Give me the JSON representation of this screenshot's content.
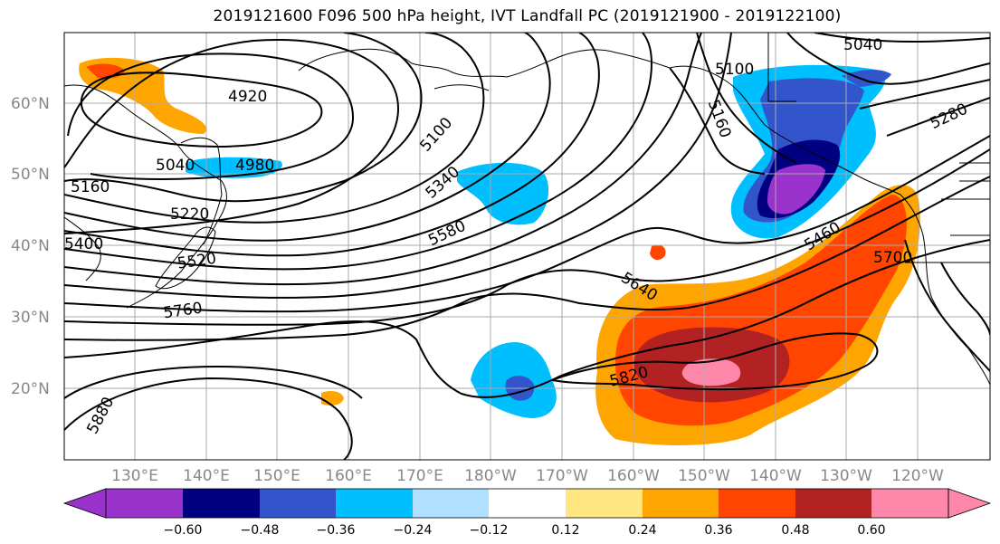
{
  "title": "2019121600 F096 500 hPa height, IVT Landfall PC (2019121900 - 2019122100)",
  "lat_ticks": [
    "20°N",
    "30°N",
    "40°N",
    "50°N",
    "60°N"
  ],
  "lon_ticks": [
    "130°E",
    "140°E",
    "150°E",
    "160°E",
    "170°E",
    "180°W",
    "170°W",
    "160°W",
    "150°W",
    "140°W",
    "130°W",
    "120°W"
  ],
  "colorbar": {
    "colors": [
      "#9933cc",
      "#000080",
      "#3355cc",
      "#00bfff",
      "#b0e0ff",
      "#ffffff",
      "#ffe680",
      "#ffa500",
      "#ff4500",
      "#b22222",
      "#ff88aa"
    ],
    "tick_labels": [
      "−0.60",
      "−0.48",
      "−0.36",
      "−0.24",
      "−0.12",
      "0.12",
      "0.24",
      "0.36",
      "0.48",
      "0.60"
    ]
  },
  "contour_labels": [
    "4920",
    "4980",
    "5040",
    "5100",
    "5160",
    "5220",
    "5280",
    "5340",
    "5400",
    "5460",
    "5520",
    "5580",
    "5640",
    "5700",
    "5760",
    "5820",
    "5880",
    "5040",
    "5100",
    "5160"
  ]
}
